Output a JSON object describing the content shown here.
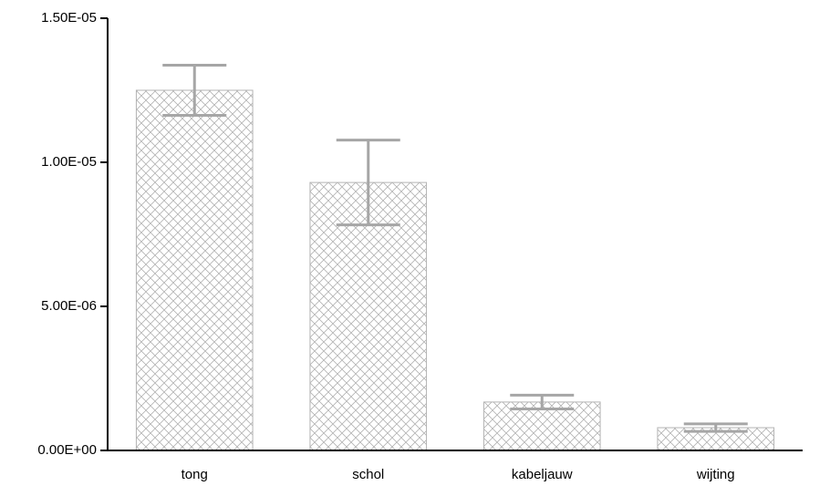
{
  "chart_data": {
    "type": "bar",
    "categories": [
      "tong",
      "schol",
      "kabeljauw",
      "wijting"
    ],
    "values": [
      1.25e-05,
      9.3e-06,
      1.68e-06,
      7.9e-07
    ],
    "errors": [
      8.7e-07,
      1.47e-06,
      2.4e-07,
      1.3e-07
    ],
    "color": "#b3b3b3",
    "error_color": "#a6a6a6",
    "ylim": [
      0,
      1.5e-05
    ],
    "yticks": [
      {
        "value": 0,
        "label": "0.00E+00"
      },
      {
        "value": 5e-06,
        "label": "5.00E-06"
      },
      {
        "value": 1e-05,
        "label": "1.00E-05"
      },
      {
        "value": 1.5e-05,
        "label": "1.50E-05"
      }
    ]
  }
}
